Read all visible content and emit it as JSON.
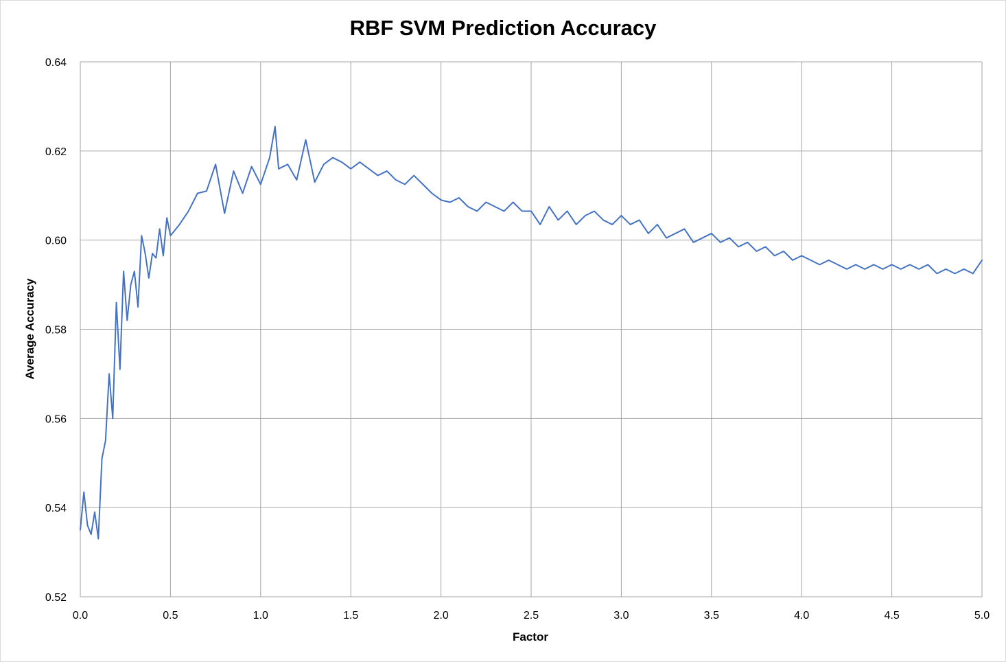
{
  "chart_data": {
    "type": "line",
    "title": "RBF SVM Prediction Accuracy",
    "xlabel": "Factor",
    "ylabel": "Average Accuracy",
    "xlim": [
      0,
      5
    ],
    "ylim": [
      0.52,
      0.64
    ],
    "x_ticks": [
      "0.0",
      "0.5",
      "1.0",
      "1.5",
      "2.0",
      "2.5",
      "3.0",
      "3.5",
      "4.0",
      "4.5",
      "5.0"
    ],
    "y_ticks": [
      "0.52",
      "0.54",
      "0.56",
      "0.58",
      "0.60",
      "0.62",
      "0.64"
    ],
    "grid": true,
    "legend": "none",
    "series": [
      {
        "color": "#4472c4",
        "x": [
          0.0,
          0.02,
          0.04,
          0.06,
          0.08,
          0.1,
          0.12,
          0.14,
          0.16,
          0.18,
          0.2,
          0.22,
          0.24,
          0.26,
          0.28,
          0.3,
          0.32,
          0.34,
          0.36,
          0.38,
          0.4,
          0.42,
          0.44,
          0.46,
          0.48,
          0.5,
          0.55,
          0.6,
          0.65,
          0.7,
          0.75,
          0.8,
          0.85,
          0.9,
          0.95,
          1.0,
          1.05,
          1.08,
          1.1,
          1.15,
          1.2,
          1.25,
          1.3,
          1.35,
          1.4,
          1.45,
          1.5,
          1.55,
          1.6,
          1.65,
          1.7,
          1.75,
          1.8,
          1.85,
          1.9,
          1.95,
          2.0,
          2.05,
          2.1,
          2.15,
          2.2,
          2.25,
          2.3,
          2.35,
          2.4,
          2.45,
          2.5,
          2.55,
          2.6,
          2.65,
          2.7,
          2.75,
          2.8,
          2.85,
          2.9,
          2.95,
          3.0,
          3.05,
          3.1,
          3.15,
          3.2,
          3.25,
          3.3,
          3.35,
          3.4,
          3.45,
          3.5,
          3.55,
          3.6,
          3.65,
          3.7,
          3.75,
          3.8,
          3.85,
          3.9,
          3.95,
          4.0,
          4.05,
          4.1,
          4.15,
          4.2,
          4.25,
          4.3,
          4.35,
          4.4,
          4.45,
          4.5,
          4.55,
          4.6,
          4.65,
          4.7,
          4.75,
          4.8,
          4.85,
          4.9,
          4.95,
          5.0
        ],
        "values": [
          0.535,
          0.5435,
          0.536,
          0.534,
          0.539,
          0.533,
          0.551,
          0.555,
          0.57,
          0.56,
          0.586,
          0.571,
          0.593,
          0.582,
          0.59,
          0.593,
          0.585,
          0.601,
          0.597,
          0.5915,
          0.597,
          0.596,
          0.6025,
          0.5965,
          0.605,
          0.601,
          0.6035,
          0.6065,
          0.6105,
          0.611,
          0.617,
          0.606,
          0.6155,
          0.6105,
          0.6165,
          0.6125,
          0.6185,
          0.6255,
          0.616,
          0.617,
          0.6135,
          0.6225,
          0.613,
          0.617,
          0.6185,
          0.6175,
          0.616,
          0.6175,
          0.616,
          0.6145,
          0.6155,
          0.6135,
          0.6125,
          0.6145,
          0.6125,
          0.6105,
          0.609,
          0.6085,
          0.6095,
          0.6075,
          0.6065,
          0.6085,
          0.6075,
          0.6065,
          0.6085,
          0.6065,
          0.6065,
          0.6035,
          0.6075,
          0.6045,
          0.6065,
          0.6035,
          0.6055,
          0.6065,
          0.6045,
          0.6035,
          0.6055,
          0.6035,
          0.6045,
          0.6015,
          0.6035,
          0.6005,
          0.6015,
          0.6025,
          0.5995,
          0.6005,
          0.6015,
          0.5995,
          0.6005,
          0.5985,
          0.5995,
          0.5975,
          0.5985,
          0.5965,
          0.5975,
          0.5955,
          0.5965,
          0.5955,
          0.5945,
          0.5955,
          0.5945,
          0.5935,
          0.5945,
          0.5935,
          0.5945,
          0.5935,
          0.5945,
          0.5935,
          0.5945,
          0.5935,
          0.5945,
          0.5925,
          0.5935,
          0.5925,
          0.5935,
          0.5925,
          0.5955
        ]
      }
    ]
  }
}
